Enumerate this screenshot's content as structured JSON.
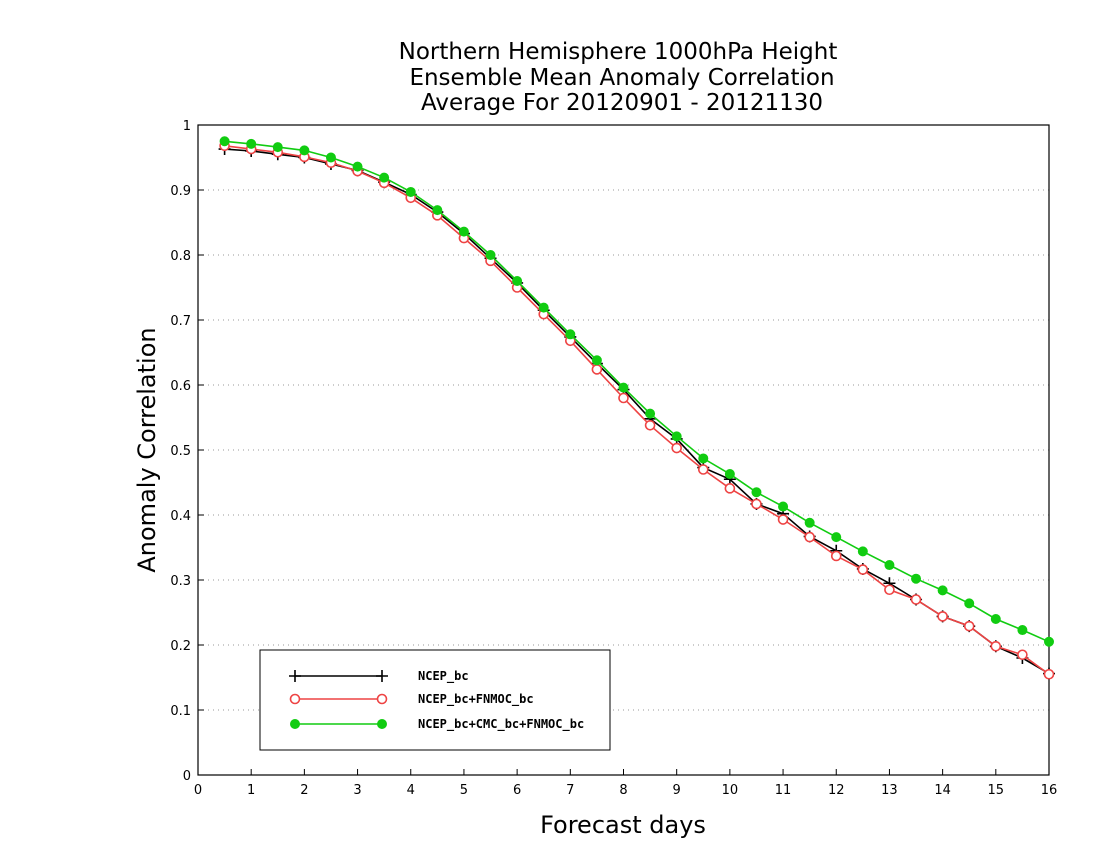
{
  "chart_data": {
    "type": "line",
    "title": [
      "Northern Hemisphere 1000hPa Height",
      "Ensemble Mean Anomaly Correlation",
      "Average For 20120901 - 20121130"
    ],
    "xlabel": "Forecast days",
    "ylabel": "Anomaly Correlation",
    "xlim": [
      0,
      16
    ],
    "ylim": [
      0,
      1
    ],
    "xticks": [
      "0",
      "1",
      "2",
      "3",
      "4",
      "5",
      "6",
      "7",
      "8",
      "9",
      "10",
      "11",
      "12",
      "13",
      "14",
      "15",
      "16"
    ],
    "yticks": [
      "0",
      "0.1",
      "0.2",
      "0.3",
      "0.4",
      "0.5",
      "0.6",
      "0.7",
      "0.8",
      "0.9",
      "1"
    ],
    "grid": "horizontal dotted",
    "legend_position": "bottom-left",
    "x": [
      0.5,
      1,
      1.5,
      2,
      2.5,
      3,
      3.5,
      4,
      4.5,
      5,
      5.5,
      6,
      6.5,
      7,
      7.5,
      8,
      8.5,
      9,
      9.5,
      10,
      10.5,
      11,
      11.5,
      12,
      12.5,
      13,
      13.5,
      14,
      14.5,
      15,
      15.5,
      16
    ],
    "series": [
      {
        "name": "NCEP_bc",
        "color": "#000000",
        "marker": "plus",
        "values": [
          0.963,
          0.96,
          0.955,
          0.95,
          0.94,
          0.93,
          0.912,
          0.893,
          0.866,
          0.833,
          0.795,
          0.757,
          0.715,
          0.674,
          0.633,
          0.593,
          0.548,
          0.517,
          0.473,
          0.455,
          0.417,
          0.402,
          0.367,
          0.345,
          0.317,
          0.295,
          0.27,
          0.244,
          0.229,
          0.198,
          0.18,
          0.156
        ]
      },
      {
        "name": "NCEP_bc+FNMOC_bc",
        "color": "#ee4444",
        "marker": "open-circle",
        "values": [
          0.968,
          0.963,
          0.958,
          0.951,
          0.942,
          0.929,
          0.911,
          0.888,
          0.861,
          0.826,
          0.791,
          0.75,
          0.709,
          0.668,
          0.624,
          0.58,
          0.538,
          0.503,
          0.47,
          0.441,
          0.417,
          0.393,
          0.366,
          0.337,
          0.316,
          0.285,
          0.27,
          0.244,
          0.229,
          0.198,
          0.185,
          0.155
        ]
      },
      {
        "name": "NCEP_bc+CMC_bc+FNMOC_bc",
        "color": "#11cc11",
        "marker": "filled-circle",
        "values": [
          0.975,
          0.971,
          0.966,
          0.961,
          0.95,
          0.936,
          0.919,
          0.897,
          0.869,
          0.836,
          0.8,
          0.76,
          0.719,
          0.678,
          0.638,
          0.596,
          0.556,
          0.521,
          0.487,
          0.463,
          0.435,
          0.413,
          0.388,
          0.366,
          0.344,
          0.323,
          0.302,
          0.284,
          0.264,
          0.24,
          0.223,
          0.205
        ]
      }
    ]
  }
}
